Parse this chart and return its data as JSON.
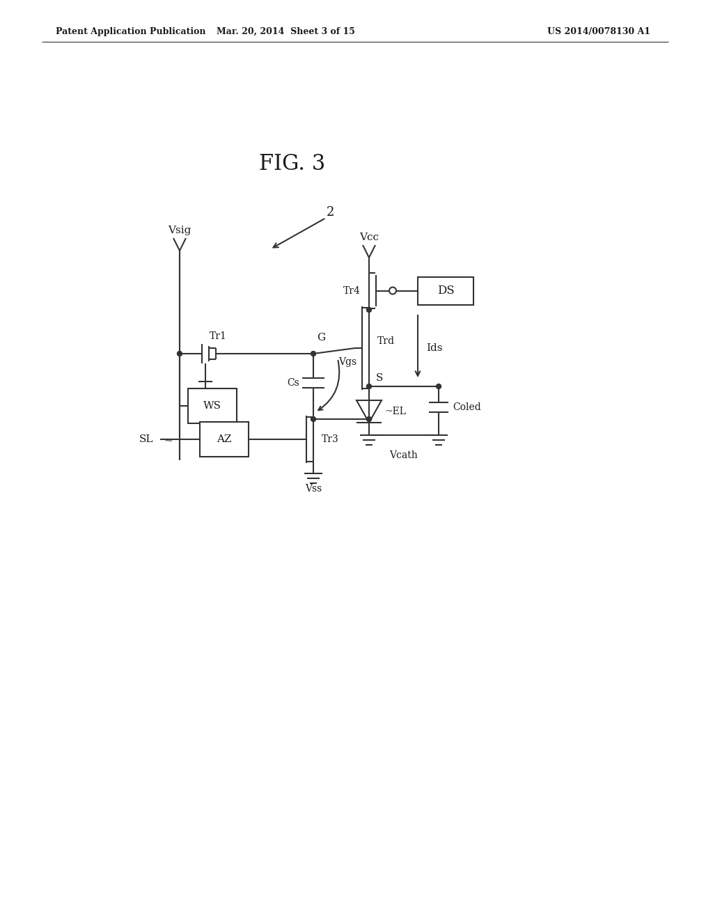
{
  "bg": "#ffffff",
  "lc": "#333333",
  "tc": "#1a1a1a",
  "lw": 1.5,
  "header_left": "Patent Application Publication",
  "header_mid": "Mar. 20, 2014  Sheet 3 of 15",
  "header_right": "US 2014/0078130 A1",
  "fig_label": "FIG. 3",
  "ref_num": "2",
  "vsig_label": "Vsig",
  "vcc_label": "Vcc",
  "tr1_label": "Tr1",
  "tr4_label": "Tr4",
  "trd_label": "Trd",
  "tr3_label": "Tr3",
  "g_label": "G",
  "s_label": "S",
  "cs_label": "Cs",
  "vgs_label": "Vgs",
  "ids_label": "Ids",
  "ws_label": "WS",
  "az_label": "AZ",
  "ds_label": "DS",
  "el_label": "~EL",
  "coled_label": "Coled",
  "vss_label": "Vss",
  "vcath_label": "Vcath",
  "sl_label": "SL"
}
